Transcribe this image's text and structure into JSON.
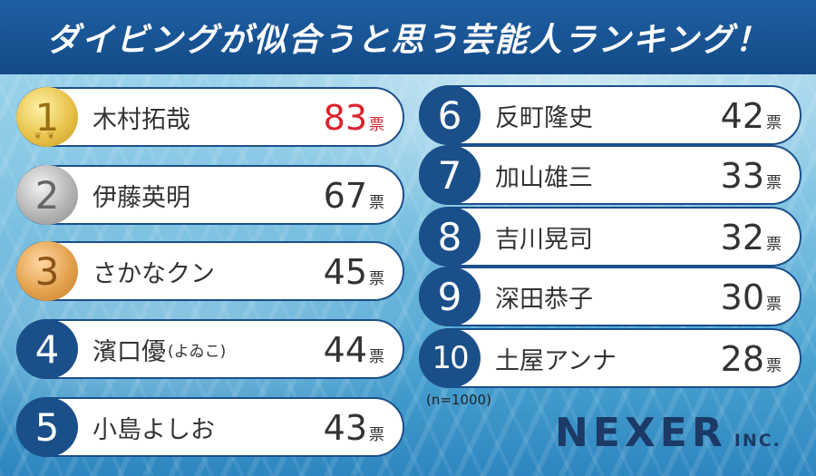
{
  "title": "ダイビングが似合うと思う芸能人ランキング！",
  "sample_note": "(n=1000)",
  "vote_unit": "票",
  "brand": {
    "main": "NEXER",
    "sub": "INC."
  },
  "colors": {
    "banner": "#134a86",
    "border": "#1b4f8a",
    "top_votes": "#d9232e"
  },
  "left_column": [
    {
      "rank": "1",
      "name": "木村拓哉",
      "note": "",
      "votes": "83",
      "medal": "gold"
    },
    {
      "rank": "2",
      "name": "伊藤英明",
      "note": "",
      "votes": "67",
      "medal": "silver"
    },
    {
      "rank": "3",
      "name": "さかなクン",
      "note": "",
      "votes": "45",
      "medal": "bronze"
    },
    {
      "rank": "4",
      "name": "濱口優",
      "note": "(よゐこ)",
      "votes": "44",
      "medal": ""
    },
    {
      "rank": "5",
      "name": "小島よしお",
      "note": "",
      "votes": "43",
      "medal": ""
    }
  ],
  "right_column": [
    {
      "rank": "6",
      "name": "反町隆史",
      "note": "",
      "votes": "42",
      "medal": ""
    },
    {
      "rank": "7",
      "name": "加山雄三",
      "note": "",
      "votes": "33",
      "medal": ""
    },
    {
      "rank": "8",
      "name": "吉川晃司",
      "note": "",
      "votes": "32",
      "medal": ""
    },
    {
      "rank": "9",
      "name": "深田恭子",
      "note": "",
      "votes": "30",
      "medal": ""
    },
    {
      "rank": "10",
      "name": "土屋アンナ",
      "note": "",
      "votes": "28",
      "medal": ""
    }
  ]
}
